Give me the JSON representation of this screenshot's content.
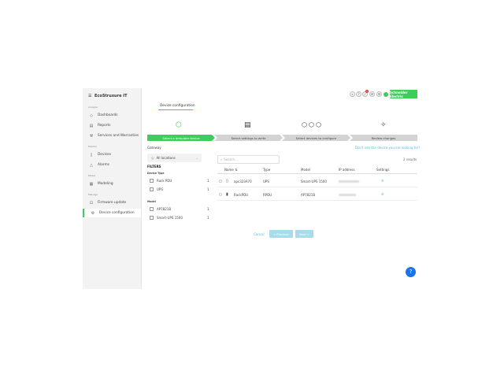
{
  "app": {
    "logo": "EcoStruxure IT",
    "brand": "Schneider Electric",
    "accent": "#3dcd58"
  },
  "sidebar": {
    "sections": [
      {
        "label": "Analyze",
        "items": [
          {
            "label": "Dashboards",
            "icon": "eye-icon"
          },
          {
            "label": "Reports",
            "icon": "document-icon"
          },
          {
            "label": "Services and Warranties",
            "icon": "tools-icon"
          }
        ]
      },
      {
        "label": "Monitor",
        "items": [
          {
            "label": "Devices",
            "icon": "device-icon"
          },
          {
            "label": "Alarms",
            "icon": "alarm-icon"
          }
        ]
      },
      {
        "label": "Model",
        "items": [
          {
            "label": "Modeling",
            "icon": "modeling-icon"
          }
        ]
      },
      {
        "label": "Manage",
        "items": [
          {
            "label": "Firmware update",
            "icon": "firmware-icon"
          },
          {
            "label": "Device configuration",
            "icon": "gear-icon",
            "active": true
          }
        ]
      }
    ]
  },
  "header": {
    "notification_count": "1"
  },
  "page": {
    "tab": "Device configuration"
  },
  "steps": [
    {
      "label": "Select a template device",
      "active": true
    },
    {
      "label": "Select settings to write"
    },
    {
      "label": "Select devices to configure"
    },
    {
      "label": "Review changes"
    }
  ],
  "filters": {
    "gateway_label": "Gateway",
    "gateway_value": "All locations",
    "title": "FILTERS",
    "device_type_label": "Device Type",
    "device_types": [
      {
        "label": "Rack PDU",
        "count": "1"
      },
      {
        "label": "UPS",
        "count": "1"
      }
    ],
    "model_label": "Model",
    "models": [
      {
        "label": "AP7821B",
        "count": "1"
      },
      {
        "label": "Smart-UPS 1500",
        "count": "1"
      }
    ]
  },
  "table": {
    "help_link": "Don't see the device you are looking for?",
    "search_placeholder": "Search...",
    "results": "2 results",
    "columns": [
      "Name",
      "Type",
      "Model",
      "IP address",
      "Settings"
    ],
    "rows": [
      {
        "name": "apc323A70",
        "type": "UPS",
        "model": "Smart-UPS 1500"
      },
      {
        "name": "RackPDU",
        "type": "RPDU",
        "model": "AP7821B"
      }
    ]
  },
  "footer": {
    "cancel": "Cancel",
    "previous": "< Previous",
    "next": "Next >"
  }
}
